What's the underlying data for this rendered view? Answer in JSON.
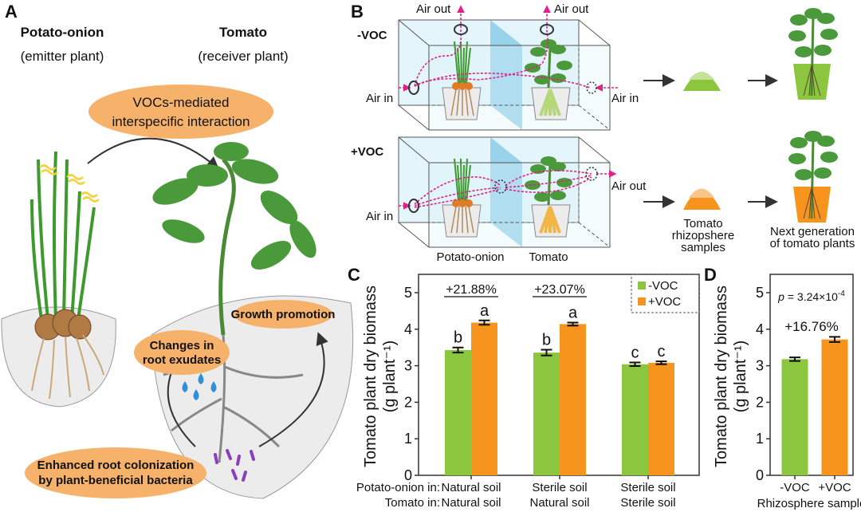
{
  "panels": {
    "a": "A",
    "b": "B",
    "c": "C",
    "d": "D"
  },
  "panel_a": {
    "emitter_title": "Potato-onion",
    "emitter_sub": "(emitter plant)",
    "receiver_title": "Tomato",
    "receiver_sub": "(receiver plant)",
    "interaction_line1": "VOCs-mediated",
    "interaction_line2": "interspecific interaction",
    "growth": "Growth promotion",
    "exudates_line1": "Changes in",
    "exudates_line2": "root exudates",
    "colonization_line1": "Enhanced root colonization",
    "colonization_line2": "by plant-beneficial bacteria",
    "colors": {
      "label_bg": "#f6b26b",
      "leaf": "#4a9a3c",
      "bulb": "#b07a45",
      "drop": "#2f8fd8",
      "bacteria": "#8a3fc0"
    }
  },
  "panel_b": {
    "minus_voc": "-VOC",
    "plus_voc": "+VOC",
    "air_out": "Air out",
    "air_in": "Air in",
    "potato_onion": "Potato-onion",
    "tomato": "Tomato",
    "samples_line1": "Tomato",
    "samples_line2": "rhizopshere",
    "samples_line3": "samples",
    "next_line1": "Next generation",
    "next_line2": "of tomato plants",
    "colors": {
      "airflow": "#e0218a",
      "box": "#dff3fa",
      "partition": "#8ccbe8",
      "minus": "#8cc63f",
      "plus": "#f7941d"
    }
  },
  "chart_data": [
    {
      "type": "bar",
      "panel": "C",
      "ylabel_line1": "Tomato plant dry biomass",
      "ylabel_line2": "(g plant⁻¹)",
      "ylim": [
        0,
        5.5
      ],
      "yticks": [
        "0",
        "1",
        "2",
        "3",
        "4",
        "5"
      ],
      "row_labels": [
        "Potato-onion in:",
        "Tomato in:"
      ],
      "categories": [
        {
          "potato_onion": "Natural soil",
          "tomato": "Natural soil"
        },
        {
          "potato_onion": "Sterile soil",
          "tomato": "Natural soil"
        },
        {
          "potato_onion": "Sterile soil",
          "tomato": "Sterile soil"
        }
      ],
      "series": [
        {
          "name": "-VOC",
          "color": "#8cc63f",
          "values": [
            3.43,
            3.36,
            3.04
          ],
          "errors": [
            0.07,
            0.08,
            0.05
          ],
          "letters": [
            "b",
            "b",
            "c"
          ]
        },
        {
          "name": "+VOC",
          "color": "#f7941d",
          "values": [
            4.18,
            4.14,
            3.08
          ],
          "errors": [
            0.06,
            0.04,
            0.04
          ],
          "letters": [
            "a",
            "a",
            "c"
          ]
        }
      ],
      "annotations": [
        "+21.88%",
        "+23.07%"
      ],
      "legend": "top-right",
      "grid": false
    },
    {
      "type": "bar",
      "panel": "D",
      "ylabel_line1": "Tomato plant dry biomass",
      "ylabel_line2": "(g plant⁻¹)",
      "xlabel": "Rhizosphere sample",
      "ylim": [
        0,
        5.5
      ],
      "yticks": [
        "0",
        "1",
        "2",
        "3",
        "4",
        "5"
      ],
      "categories": [
        "-VOC",
        "+VOC"
      ],
      "values": [
        3.18,
        3.72
      ],
      "errors": [
        0.05,
        0.07
      ],
      "colors": [
        "#8cc63f",
        "#f7941d"
      ],
      "p_label": "p",
      "p_value": " = 3.24×10",
      "p_exponent": "-4",
      "annotation": "+16.76%",
      "grid": false
    }
  ]
}
